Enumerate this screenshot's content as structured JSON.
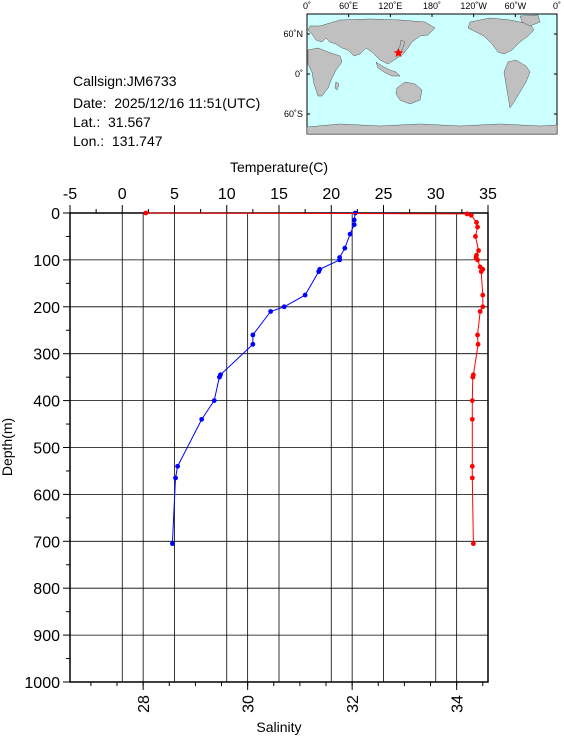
{
  "info": {
    "callsign": "Callsign:JM6733",
    "date": "Date:  2025/12/16 11:51(UTC)",
    "lat": "Lat.:  31.567",
    "lon": "Lon.:  131.747"
  },
  "map": {
    "lon_ticks": [
      "0˚",
      "60˚E",
      "120˚E",
      "180˚",
      "120˚W",
      "60˚W",
      "0˚"
    ],
    "lat_ticks": [
      "60˚N",
      "0˚",
      "60˚S"
    ],
    "ocean_color": "#ccffff",
    "land_color": "#c0c0c0",
    "marker": {
      "lat": 31.567,
      "lon": 131.747,
      "color": "#ff0000",
      "icon": "star-icon"
    }
  },
  "chart_data": {
    "type": "line",
    "xlabel_top": "Temperature(C)",
    "xlabel_bottom": "Salinity",
    "ylabel": "Depth(m)",
    "temperature_axis": {
      "min": -5,
      "max": 35,
      "ticks": [
        "-5",
        "0",
        "5",
        "10",
        "15",
        "20",
        "25",
        "30",
        "35"
      ]
    },
    "salinity_axis": {
      "min": 26.6,
      "max": 34.6,
      "ticks": [
        "28",
        "30",
        "32",
        "34"
      ]
    },
    "depth_axis": {
      "min": 0,
      "max": 1000,
      "ticks": [
        "0",
        "100",
        "200",
        "300",
        "400",
        "500",
        "600",
        "700",
        "800",
        "900",
        "1000"
      ]
    },
    "grid": true,
    "series": [
      {
        "variable": "temperature",
        "color": "#0000ff",
        "depth": [
          0,
          15,
          25,
          45,
          75,
          95,
          100,
          120,
          125,
          175,
          200,
          210,
          260,
          280,
          345,
          350,
          400,
          440,
          540,
          565,
          705
        ],
        "values": [
          22.3,
          22.2,
          22.2,
          21.8,
          21.3,
          20.8,
          20.8,
          18.9,
          18.8,
          17.5,
          15.5,
          14.2,
          12.5,
          12.5,
          9.4,
          9.3,
          8.8,
          7.6,
          5.3,
          5.1,
          4.8
        ]
      },
      {
        "variable": "salinity",
        "color": "#ff0000",
        "depth": [
          0,
          2,
          5,
          20,
          30,
          50,
          80,
          90,
          95,
          100,
          115,
          120,
          125,
          175,
          200,
          210,
          260,
          280,
          345,
          350,
          400,
          440,
          540,
          565,
          705
        ],
        "values": [
          28.05,
          34.2,
          34.28,
          34.38,
          34.4,
          34.36,
          34.42,
          34.38,
          34.37,
          34.4,
          34.45,
          34.5,
          34.47,
          34.5,
          34.5,
          34.45,
          34.4,
          34.41,
          34.32,
          34.31,
          34.3,
          34.3,
          34.3,
          34.3,
          34.32
        ]
      }
    ]
  }
}
